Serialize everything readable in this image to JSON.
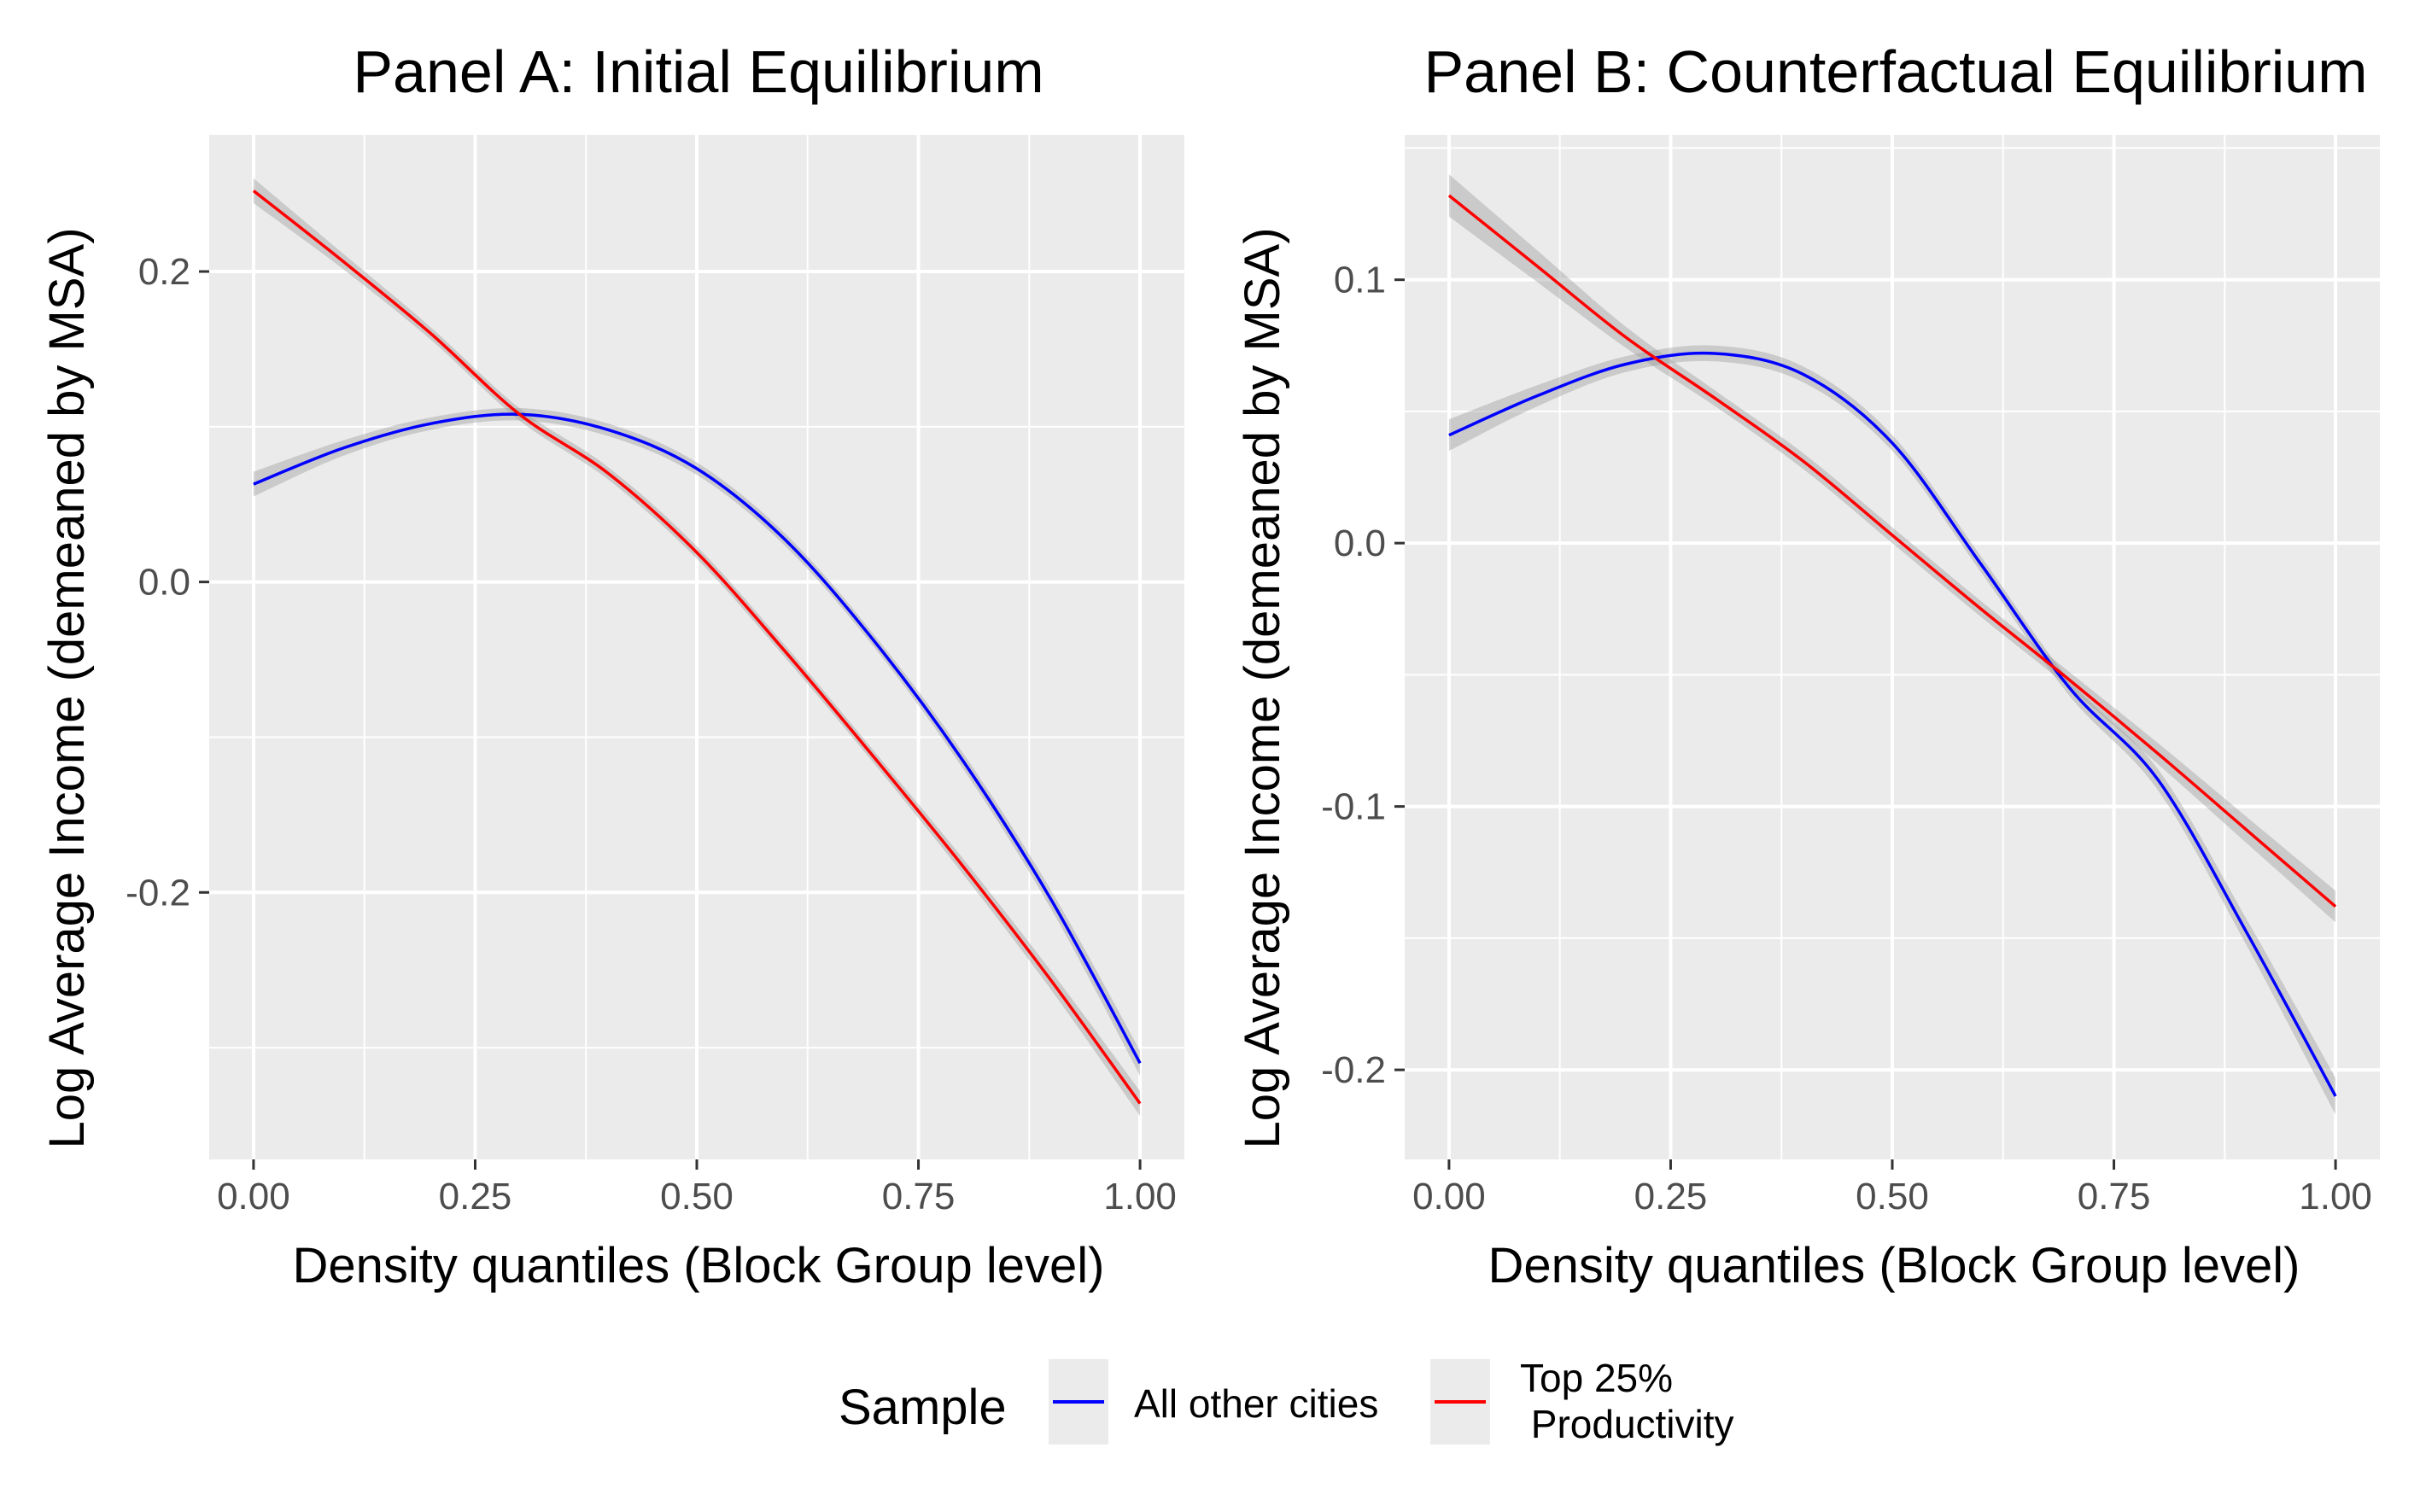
{
  "chart_data": [
    {
      "type": "line",
      "title": "Panel A: Initial Equilibrium",
      "xlabel": "Density quantiles (Block Group level)",
      "ylabel": "Log Average Income (demeaned by MSA)",
      "xlim": [
        -0.05,
        1.05
      ],
      "ylim": [
        -0.372,
        0.288
      ],
      "xticks": [
        "0.00",
        "0.25",
        "0.50",
        "0.75",
        "1.00"
      ],
      "yticks": [
        "-0.2",
        "0.0",
        "0.2"
      ],
      "grid": true,
      "series": [
        {
          "name": "All other cities",
          "color": "#0000ff",
          "x": [
            0.0,
            0.1,
            0.2,
            0.3,
            0.4,
            0.5,
            0.6,
            0.7,
            0.8,
            0.9,
            1.0
          ],
          "y": [
            0.063,
            0.086,
            0.102,
            0.108,
            0.098,
            0.073,
            0.027,
            -0.038,
            -0.115,
            -0.205,
            -0.31
          ],
          "ci": [
            0.008,
            0.005,
            0.004,
            0.004,
            0.004,
            0.004,
            0.004,
            0.004,
            0.005,
            0.006,
            0.008
          ]
        },
        {
          "name": "Top 25%\n Productivity",
          "color": "#ff0000",
          "x": [
            0.0,
            0.1,
            0.2,
            0.3,
            0.4,
            0.5,
            0.6,
            0.7,
            0.8,
            0.9,
            1.0
          ],
          "y": [
            0.252,
            0.207,
            0.16,
            0.108,
            0.07,
            0.019,
            -0.045,
            -0.113,
            -0.183,
            -0.257,
            -0.336
          ],
          "ci": [
            0.008,
            0.005,
            0.004,
            0.004,
            0.004,
            0.004,
            0.004,
            0.004,
            0.005,
            0.006,
            0.008
          ]
        }
      ]
    },
    {
      "type": "line",
      "title": "Panel B: Counterfactual Equilibrium",
      "xlabel": "Density quantiles (Block Group level)",
      "ylabel": "Log Average Income (demeaned by MSA)",
      "xlim": [
        -0.05,
        1.05
      ],
      "ylim": [
        -0.234,
        0.155
      ],
      "xticks": [
        "0.00",
        "0.25",
        "0.50",
        "0.75",
        "1.00"
      ],
      "yticks": [
        "-0.2",
        "-0.1",
        "0.0",
        "0.1"
      ],
      "grid": true,
      "series": [
        {
          "name": "All other cities",
          "color": "#0000ff",
          "x": [
            0.0,
            0.1,
            0.2,
            0.3,
            0.4,
            0.5,
            0.6,
            0.7,
            0.8,
            0.9,
            1.0
          ],
          "y": [
            0.041,
            0.056,
            0.068,
            0.072,
            0.064,
            0.038,
            -0.008,
            -0.055,
            -0.09,
            -0.148,
            -0.21
          ],
          "ci": [
            0.006,
            0.004,
            0.003,
            0.003,
            0.003,
            0.003,
            0.003,
            0.003,
            0.004,
            0.005,
            0.007
          ]
        },
        {
          "name": "Top 25%\n Productivity",
          "color": "#ff0000",
          "x": [
            0.0,
            0.1,
            0.2,
            0.3,
            0.4,
            0.5,
            0.6,
            0.7,
            0.8,
            0.9,
            1.0
          ],
          "y": [
            0.132,
            0.105,
            0.078,
            0.055,
            0.031,
            0.003,
            -0.025,
            -0.052,
            -0.08,
            -0.109,
            -0.138
          ],
          "ci": [
            0.008,
            0.006,
            0.004,
            0.003,
            0.003,
            0.003,
            0.003,
            0.003,
            0.004,
            0.005,
            0.006
          ]
        }
      ]
    }
  ],
  "legend": {
    "title": "Sample",
    "items": [
      {
        "label": "All other cities",
        "color": "#0000ff"
      },
      {
        "label_line1": "Top 25%",
        "label_line2": " Productivity",
        "color": "#ff0000"
      }
    ],
    "placement": "bottom"
  }
}
